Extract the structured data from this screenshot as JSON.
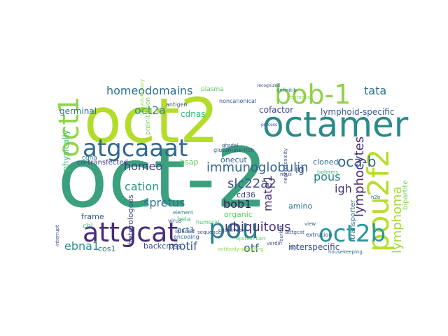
{
  "word_cloud": {
    "words": [
      {
        "text": "oct-2",
        "color": "#3aa07d"
      },
      {
        "text": "oct2",
        "color": "#b3dc2b"
      },
      {
        "text": "octamer",
        "color": "#2a8a8a"
      },
      {
        "text": "bob-1",
        "color": "#8fd14a"
      },
      {
        "text": "pou2f2",
        "color": "#b7de2a"
      },
      {
        "text": "oct1",
        "color": "#8ed645"
      },
      {
        "text": "atgcaaat",
        "color": "#31688e"
      },
      {
        "text": "attgcat",
        "color": "#482a78"
      },
      {
        "text": "pou",
        "color": "#2c7d8d"
      },
      {
        "text": "oct2b",
        "color": "#2a96a0"
      },
      {
        "text": "immunoglobulin",
        "color": "#32658e"
      },
      {
        "text": "homeodomains",
        "color": "#2e6f8e"
      },
      {
        "text": "oct2a",
        "color": "#2b8b8c"
      },
      {
        "text": "tata",
        "color": "#2a788e"
      },
      {
        "text": "oca-b",
        "color": "#31658e"
      },
      {
        "text": "lymphoma",
        "color": "#a5db36"
      },
      {
        "text": "lymphocytes",
        "color": "#46307e"
      },
      {
        "text": "slc22a2",
        "color": "#3b528b"
      },
      {
        "text": "cation",
        "color": "#2a978c"
      },
      {
        "text": "spretus",
        "color": "#2c738e"
      },
      {
        "text": "ubiquitous",
        "color": "#46327e"
      },
      {
        "text": "homeo",
        "color": "#433d84"
      },
      {
        "text": "motif",
        "color": "#35598c"
      },
      {
        "text": "otf",
        "color": "#38588c"
      },
      {
        "text": "ebna1",
        "color": "#2a8a8a"
      },
      {
        "text": "bob1",
        "color": "#440f5b"
      },
      {
        "text": "igh",
        "color": "#453882"
      },
      {
        "text": "pous",
        "color": "#277f8e"
      },
      {
        "text": "mate1",
        "color": "#472d7b"
      },
      {
        "text": "cofactor",
        "color": "#3f4889"
      },
      {
        "text": "lymphoid-specific",
        "color": "#365c8d"
      },
      {
        "text": "cdnas",
        "color": "#35b779"
      },
      {
        "text": "onecut",
        "color": "#31688e"
      },
      {
        "text": "ig",
        "color": "#3b528b"
      },
      {
        "text": "cd36",
        "color": "#424186"
      },
      {
        "text": "cloned",
        "color": "#31688e"
      },
      {
        "text": "germinal",
        "color": "#2c728e"
      },
      {
        "text": "physically",
        "color": "#3fbc73"
      },
      {
        "text": "frame",
        "color": "#38588c"
      },
      {
        "text": "chl",
        "color": "#35b779"
      },
      {
        "text": "cos1",
        "color": "#2d708e"
      },
      {
        "text": "backcross",
        "color": "#3e4989"
      },
      {
        "text": "oct3",
        "color": "#2e6e8e"
      },
      {
        "text": "interspecific",
        "color": "#3b518b"
      },
      {
        "text": "transporter",
        "color": "#2c728e"
      },
      {
        "text": "bipartite",
        "color": "#7ad151"
      },
      {
        "text": "heterologous",
        "color": "#3e4c8a"
      },
      {
        "text": "amino",
        "color": "#2c738e"
      },
      {
        "text": "organic",
        "color": "#5ec962"
      },
      {
        "text": "bsap",
        "color": "#5ec962"
      },
      {
        "text": "co-transfected",
        "color": "#424086"
      },
      {
        "text": "cdna",
        "color": "#2c728e"
      },
      {
        "text": "antigen",
        "color": "#3e4c8a"
      },
      {
        "text": "glutamine-rich",
        "color": "#3b528b"
      },
      {
        "text": "convolutionary",
        "color": "#8ed645"
      },
      {
        "text": "preinitiation",
        "color": "#6ccd5a"
      },
      {
        "text": "spliced",
        "color": "#3b528b"
      },
      {
        "text": "plasma",
        "color": "#5ec962"
      },
      {
        "text": "encoding",
        "color": "#2e6e8e"
      },
      {
        "text": "isoforms",
        "color": "#3fbc73"
      },
      {
        "text": "extrusion",
        "color": "#3b528b"
      },
      {
        "text": "view",
        "color": "#35608d"
      },
      {
        "text": "definitib",
        "color": "#2c728e"
      },
      {
        "text": "noncanonical",
        "color": "#39568c"
      },
      {
        "text": "ghsdel",
        "color": "#3b528b"
      },
      {
        "text": "h2b",
        "color": "#2c728e"
      },
      {
        "text": "humoral",
        "color": "#48c16e"
      },
      {
        "text": "element",
        "color": "#2e6e8e"
      },
      {
        "text": "epstein-barr",
        "color": "#5ec962"
      },
      {
        "text": "coactivator",
        "color": "#3b528b"
      },
      {
        "text": "nephrotoxicity",
        "color": "#3e4c8a"
      },
      {
        "text": "virus",
        "color": "#424086"
      },
      {
        "text": "verdin",
        "color": "#3b528b"
      },
      {
        "text": "antibody-secreting",
        "color": "#8ed645"
      },
      {
        "text": "atttgcat",
        "color": "#3b528b"
      },
      {
        "text": "housekeeping",
        "color": "#31688e"
      },
      {
        "text": "nous",
        "color": "#424086"
      },
      {
        "text": "hela",
        "color": "#3fbc73"
      },
      {
        "text": "burkitt",
        "color": "#3b528b"
      },
      {
        "text": "figi",
        "color": "#3b528b"
      },
      {
        "text": "interrupt",
        "color": "#3e4c8a"
      },
      {
        "text": "recognized",
        "color": "#3b528b"
      },
      {
        "text": "process",
        "color": "#3e4c8a"
      },
      {
        "text": "sequences",
        "color": "#3b528b"
      },
      {
        "text": "reproduce",
        "color": "#8ed645"
      }
    ]
  }
}
